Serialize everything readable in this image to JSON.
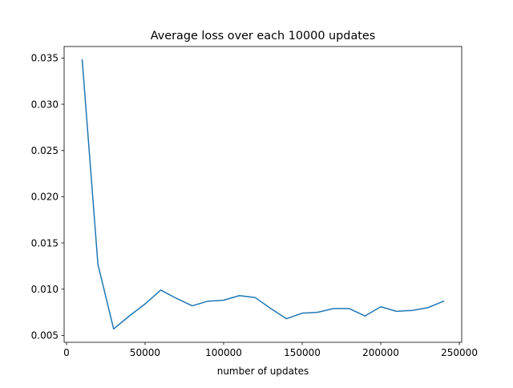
{
  "chart_data": {
    "type": "line",
    "title": "Average loss over each 10000 updates",
    "xlabel": "number of updates",
    "ylabel": "",
    "xlim": [
      -1500,
      251500
    ],
    "ylim": [
      0.00425,
      0.03625
    ],
    "xticks": [
      0,
      50000,
      100000,
      150000,
      200000,
      250000
    ],
    "xtick_labels": [
      "0",
      "50000",
      "100000",
      "150000",
      "200000",
      "250000"
    ],
    "yticks": [
      0.005,
      0.01,
      0.015,
      0.02,
      0.025,
      0.03,
      0.035
    ],
    "ytick_labels": [
      "0.005",
      "0.010",
      "0.015",
      "0.020",
      "0.025",
      "0.030",
      "0.035"
    ],
    "grid": false,
    "series": [
      {
        "color": "#1f77b4",
        "x": [
          10000,
          20000,
          30000,
          40000,
          50000,
          60000,
          70000,
          80000,
          90000,
          100000,
          110000,
          120000,
          130000,
          140000,
          150000,
          160000,
          170000,
          180000,
          190000,
          200000,
          210000,
          220000,
          230000,
          240000
        ],
        "y": [
          0.0348,
          0.0127,
          0.0057,
          0.0071,
          0.0084,
          0.0099,
          0.009,
          0.0082,
          0.0087,
          0.0088,
          0.0093,
          0.0091,
          0.0079,
          0.0068,
          0.0074,
          0.0075,
          0.0079,
          0.0079,
          0.0071,
          0.0081,
          0.0076,
          0.0077,
          0.008,
          0.0087
        ]
      }
    ]
  }
}
